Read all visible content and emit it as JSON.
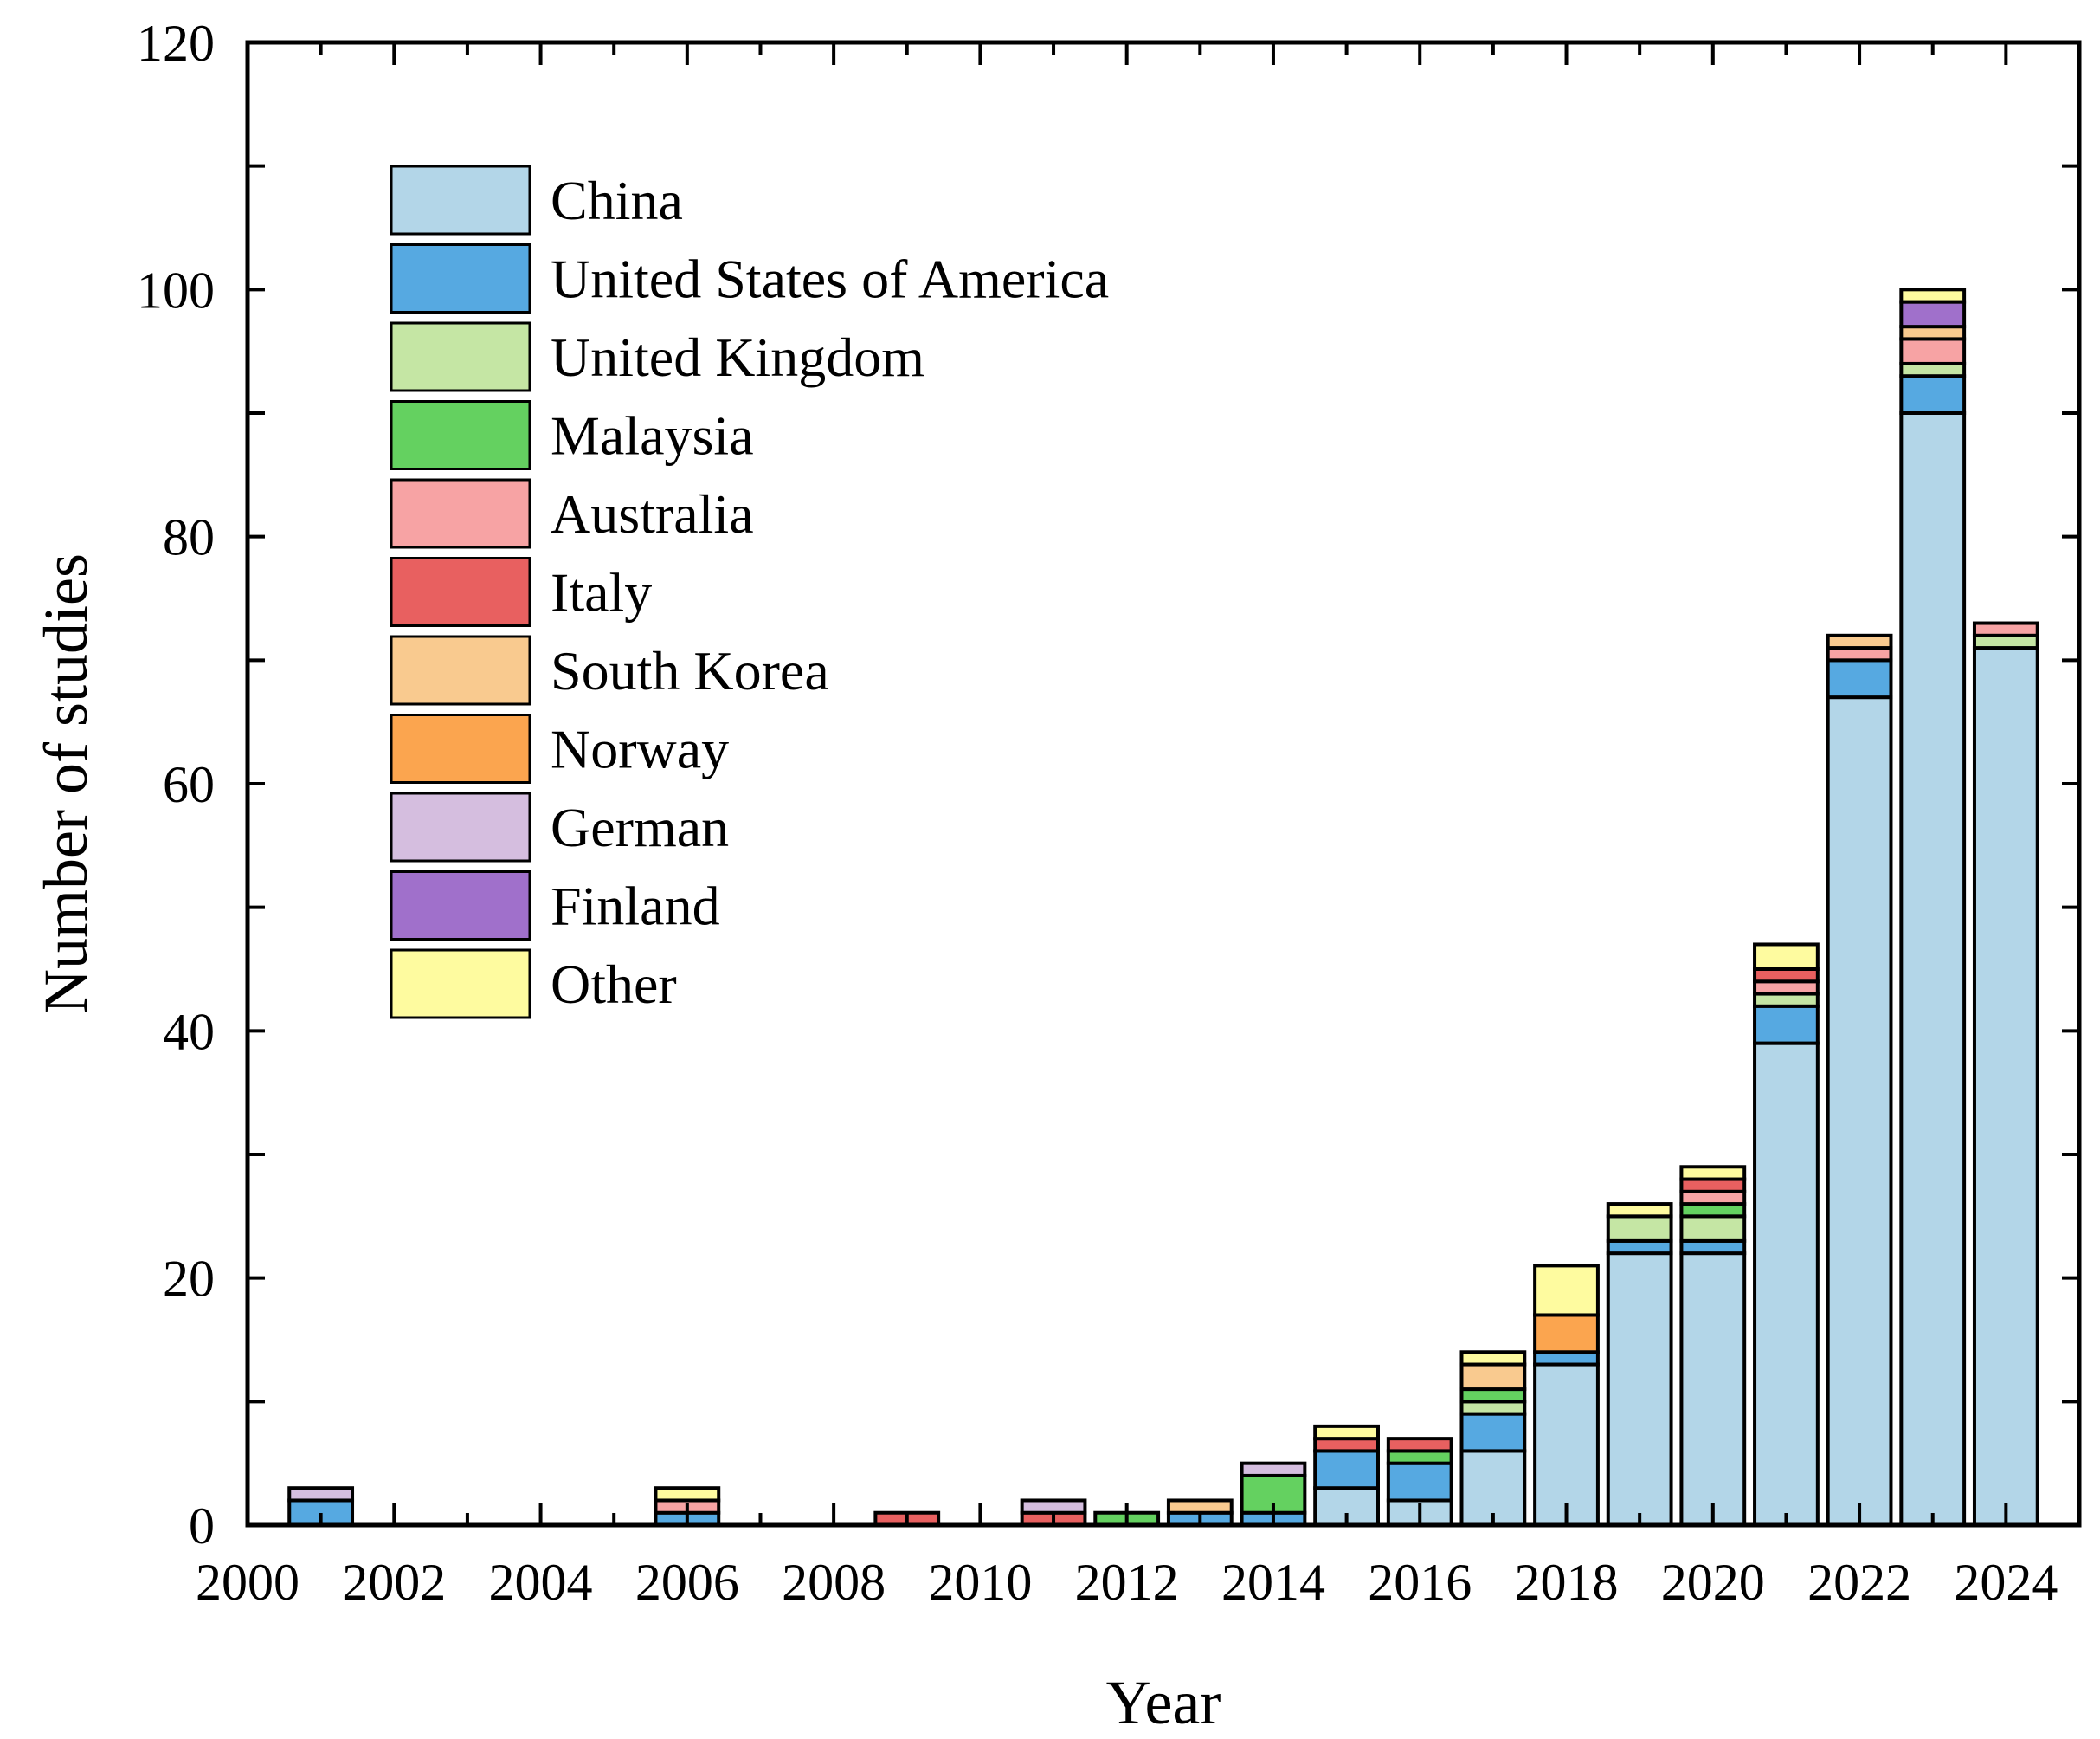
{
  "chart_data": {
    "type": "bar",
    "stacked": true,
    "xlabel": "Year",
    "ylabel": "Number of studies",
    "ylim": [
      0,
      120
    ],
    "yticks": [
      0,
      20,
      40,
      60,
      80,
      100,
      120
    ],
    "xlim": [
      2000,
      2025
    ],
    "xticks": [
      2000,
      2002,
      2004,
      2006,
      2008,
      2010,
      2012,
      2014,
      2016,
      2018,
      2020,
      2022,
      2024
    ],
    "xticklabels": [
      "2000",
      "2002",
      "2004",
      "2006",
      "2008",
      "2010",
      "2012",
      "2014",
      "2016",
      "2018",
      "2020",
      "2022",
      "2024"
    ],
    "yticklabels": [
      "0",
      "20",
      "40",
      "60",
      "80",
      "100",
      "120"
    ],
    "legend_position": "top-left",
    "categories": [
      2001,
      2006,
      2009,
      2011,
      2012,
      2013,
      2014,
      2015,
      2016,
      2017,
      2018,
      2019,
      2020,
      2021,
      2022,
      2023,
      2024
    ],
    "series": [
      {
        "name": "China",
        "color": "#b3d6e8",
        "values": [
          0,
          0,
          0,
          0,
          0,
          0,
          0,
          3,
          2,
          6,
          13,
          22,
          22,
          39,
          67,
          90,
          71
        ]
      },
      {
        "name": "United States of America",
        "color": "#56a9e1",
        "values": [
          2,
          1,
          0,
          0,
          0,
          1,
          1,
          3,
          3,
          3,
          1,
          1,
          1,
          3,
          3,
          3,
          0
        ]
      },
      {
        "name": "United Kingdom",
        "color": "#c5e6a4",
        "values": [
          0,
          0,
          0,
          0,
          0,
          0,
          0,
          0,
          0,
          1,
          0,
          2,
          2,
          1,
          0,
          1,
          1
        ]
      },
      {
        "name": "Malaysia",
        "color": "#64d160",
        "values": [
          0,
          0,
          0,
          0,
          1,
          0,
          3,
          0,
          1,
          1,
          0,
          0,
          1,
          0,
          0,
          0,
          0
        ]
      },
      {
        "name": "Australia",
        "color": "#f7a3a4",
        "values": [
          0,
          1,
          0,
          0,
          0,
          0,
          0,
          0,
          0,
          0,
          0,
          0,
          1,
          1,
          1,
          2,
          1
        ]
      },
      {
        "name": "Italy",
        "color": "#e86060",
        "values": [
          0,
          0,
          1,
          1,
          0,
          0,
          0,
          1,
          1,
          0,
          0,
          0,
          1,
          1,
          0,
          0,
          0
        ]
      },
      {
        "name": "South Korea",
        "color": "#f9ca8f",
        "values": [
          0,
          0,
          0,
          0,
          0,
          1,
          0,
          0,
          0,
          2,
          0,
          0,
          0,
          0,
          1,
          1,
          0
        ]
      },
      {
        "name": "Norway",
        "color": "#fba54f",
        "values": [
          0,
          0,
          0,
          0,
          0,
          0,
          0,
          0,
          0,
          0,
          3,
          0,
          0,
          0,
          0,
          0,
          0
        ]
      },
      {
        "name": "German",
        "color": "#d5bedf",
        "values": [
          1,
          0,
          0,
          1,
          0,
          0,
          1,
          0,
          0,
          0,
          0,
          0,
          0,
          0,
          0,
          0,
          0
        ]
      },
      {
        "name": "Finland",
        "color": "#a070cb",
        "values": [
          0,
          0,
          0,
          0,
          0,
          0,
          0,
          0,
          0,
          0,
          0,
          0,
          0,
          0,
          0,
          2,
          0
        ]
      },
      {
        "name": "Other",
        "color": "#fefb9f",
        "values": [
          0,
          1,
          0,
          0,
          0,
          0,
          0,
          1,
          0,
          1,
          4,
          1,
          1,
          2,
          0,
          1,
          0
        ]
      }
    ]
  }
}
